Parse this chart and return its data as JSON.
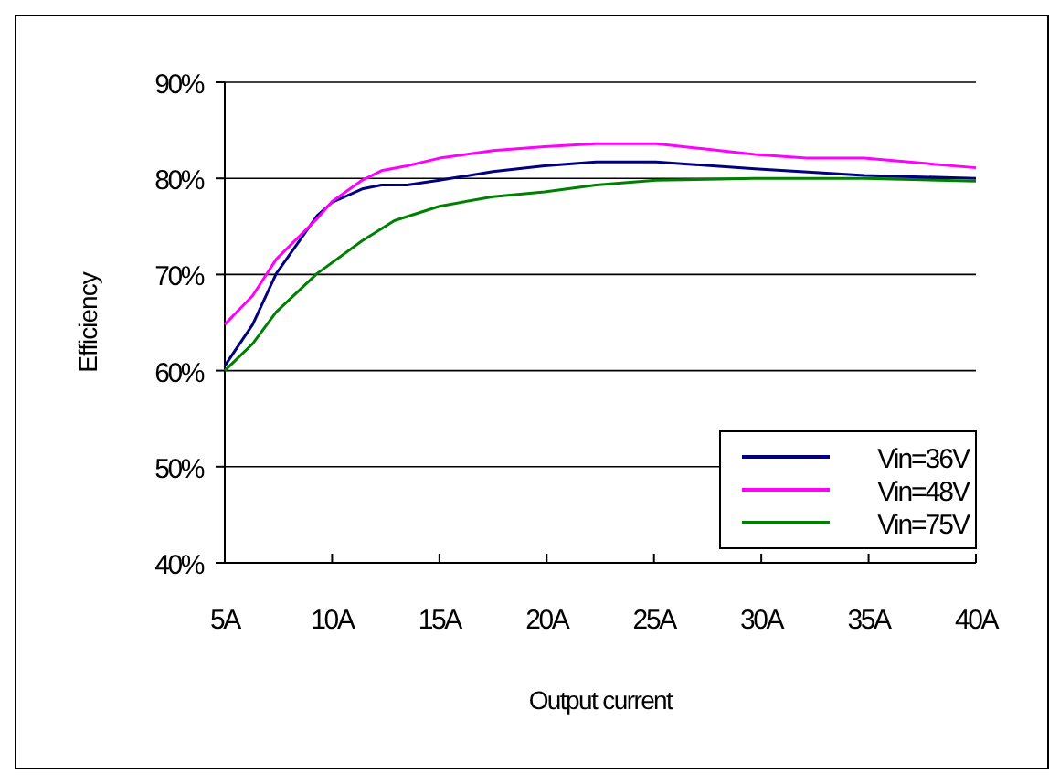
{
  "chart_data": {
    "type": "line",
    "xlabel": "Output current",
    "ylabel": "Efficiency",
    "xlim": [
      5,
      40
    ],
    "xticks": [
      {
        "value": 5,
        "label": "5A"
      },
      {
        "value": 10,
        "label": "10A"
      },
      {
        "value": 15,
        "label": "15A"
      },
      {
        "value": 20,
        "label": "20A"
      },
      {
        "value": 25,
        "label": "25A"
      },
      {
        "value": 30,
        "label": "30A"
      },
      {
        "value": 35,
        "label": "35A"
      },
      {
        "value": 40,
        "label": "40A"
      }
    ],
    "ylim": [
      40,
      90
    ],
    "yticks": [
      {
        "value": 40,
        "label": "40%"
      },
      {
        "value": 50,
        "label": "50%"
      },
      {
        "value": 60,
        "label": "60%"
      },
      {
        "value": 70,
        "label": "70%"
      },
      {
        "value": 80,
        "label": "80%"
      },
      {
        "value": 90,
        "label": "90%"
      }
    ],
    "grid": "y",
    "legend": "bottom right",
    "marker": "none",
    "line_style": "solid",
    "series": [
      {
        "name": "Vin=36V",
        "color": "#000080",
        "x": [
          5,
          6.3,
          7.4,
          9.3,
          10,
          11.4,
          12.3,
          13.5,
          15,
          17.5,
          19.9,
          22.3,
          25.1,
          29.7,
          34.8,
          40
        ],
        "values": [
          60.5,
          64.8,
          70.1,
          76.1,
          77.5,
          78.9,
          79.3,
          79.3,
          79.8,
          80.7,
          81.3,
          81.7,
          81.7,
          81,
          80.3,
          80
        ]
      },
      {
        "name": "Vin=48V",
        "color": "#ff00ff",
        "x": [
          5,
          6.3,
          7.4,
          9.3,
          10,
          11.4,
          12.3,
          13.5,
          15,
          17.5,
          19.9,
          22.3,
          25.1,
          27.2,
          29.7,
          32.1,
          34.8,
          40
        ],
        "values": [
          64.8,
          67.8,
          71.6,
          75.8,
          77.6,
          79.8,
          80.8,
          81.3,
          82.1,
          82.9,
          83.3,
          83.6,
          83.6,
          83.1,
          82.5,
          82.1,
          82.1,
          81.1
        ]
      },
      {
        "name": "Vin=75V",
        "color": "#008000",
        "x": [
          5,
          6.3,
          7.4,
          9.3,
          11.4,
          12.9,
          15,
          17.5,
          19.9,
          22.3,
          25.1,
          29.7,
          34.8,
          40
        ],
        "values": [
          60,
          62.8,
          66.1,
          70.1,
          73.5,
          75.6,
          77.1,
          78.1,
          78.6,
          79.3,
          79.8,
          80,
          80,
          79.7
        ]
      }
    ]
  }
}
